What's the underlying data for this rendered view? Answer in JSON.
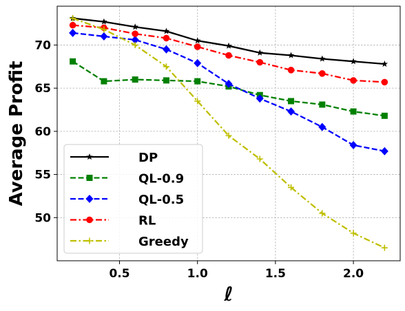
{
  "chart_data": {
    "type": "line",
    "xlabel": "ℓ",
    "ylabel": "Average Profit",
    "xlim": [
      0.1,
      2.3
    ],
    "ylim": [
      45.0,
      74.5
    ],
    "xticks": [
      0.5,
      1.0,
      1.5,
      2.0
    ],
    "xtick_labels": [
      "0.5",
      "1.0",
      "1.5",
      "2.0"
    ],
    "yticks": [
      50,
      55,
      60,
      65,
      70
    ],
    "ytick_labels": [
      "50",
      "55",
      "60",
      "65",
      "70"
    ],
    "grid": true,
    "legend_position": "lower-left",
    "x": [
      0.2,
      0.4,
      0.6,
      0.8,
      1.0,
      1.2,
      1.4,
      1.6,
      1.8,
      2.0,
      2.2
    ],
    "series": [
      {
        "name": "DP",
        "color": "#000000",
        "dash": "solid",
        "marker": "star",
        "values": [
          73.1,
          72.7,
          72.1,
          71.6,
          70.5,
          69.9,
          69.1,
          68.8,
          68.4,
          68.1,
          67.8
        ]
      },
      {
        "name": "QL-0.9",
        "color": "#008000",
        "dash": "dashed",
        "marker": "square",
        "values": [
          68.1,
          65.8,
          66.0,
          65.9,
          65.8,
          65.2,
          64.2,
          63.5,
          63.1,
          62.3,
          61.8
        ]
      },
      {
        "name": "QL-0.5",
        "color": "#0000ff",
        "dash": "dashed",
        "marker": "diamond",
        "values": [
          71.4,
          71.0,
          70.6,
          69.5,
          67.9,
          65.5,
          63.8,
          62.3,
          60.5,
          58.4,
          57.7
        ]
      },
      {
        "name": "RL",
        "color": "#ff0000",
        "dash": "dashdot",
        "marker": "circle",
        "values": [
          72.3,
          72.0,
          71.3,
          70.8,
          69.8,
          68.8,
          68.0,
          67.1,
          66.7,
          65.9,
          65.7
        ]
      },
      {
        "name": "Greedy",
        "color": "#bfbf00",
        "dash": "dashdot",
        "marker": "plus",
        "values": [
          73.1,
          71.8,
          70.0,
          67.5,
          63.5,
          59.5,
          56.8,
          53.5,
          50.5,
          48.2,
          46.5
        ]
      }
    ]
  }
}
